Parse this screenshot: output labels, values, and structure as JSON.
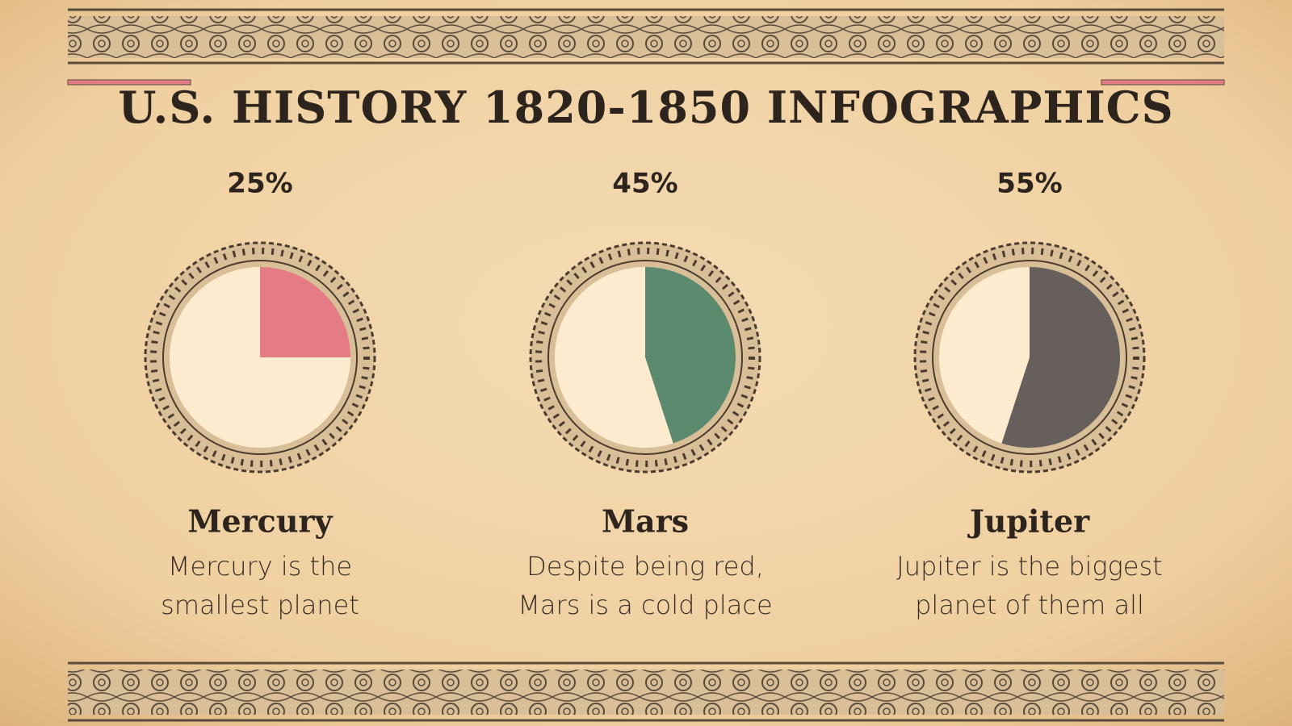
{
  "title": "U.S. HISTORY 1820-1850 INFOGRAPHICS",
  "chart_data": [
    {
      "type": "pie",
      "title": "Mercury",
      "description": [
        "Mercury is the",
        "smallest planet"
      ],
      "values": [
        25,
        75
      ],
      "value_labels": [
        "25%",
        null
      ],
      "colors": [
        "#e57b84",
        "#fdebd0"
      ]
    },
    {
      "type": "pie",
      "title": "Mars",
      "description": [
        "Despite being red,",
        "Mars is a cold place"
      ],
      "values": [
        45,
        55
      ],
      "value_labels": [
        "45%",
        null
      ],
      "colors": [
        "#5b8a6e",
        "#fdebd0"
      ]
    },
    {
      "type": "pie",
      "title": "Jupiter",
      "description": [
        "Jupiter is the biggest",
        "planet of them all"
      ],
      "values": [
        55,
        45
      ],
      "value_labels": [
        "55%",
        null
      ],
      "colors": [
        "#675f5c",
        "#fdebd0"
      ]
    }
  ]
}
